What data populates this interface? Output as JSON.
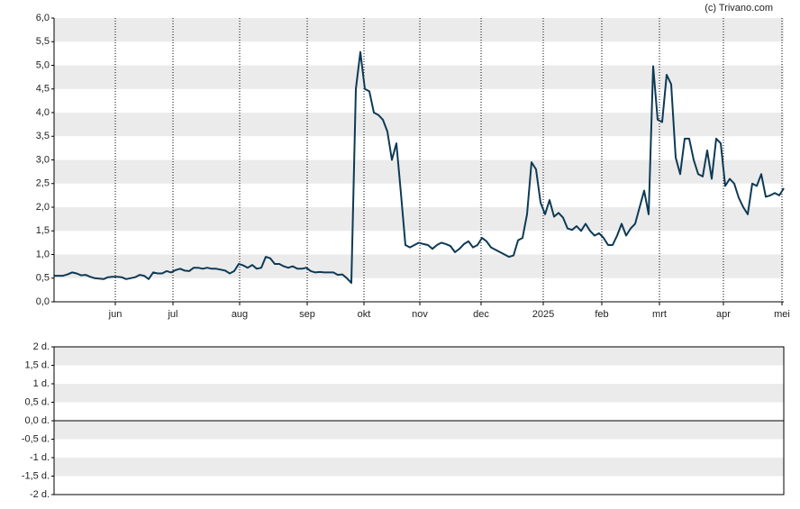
{
  "source": "(c) Trivano.com",
  "chart_data": [
    {
      "type": "line",
      "series": [
        {
          "color": "#0e3a55",
          "values": [
            0.55,
            0.55,
            0.55,
            0.58,
            0.62,
            0.6,
            0.56,
            0.57,
            0.53,
            0.5,
            0.49,
            0.48,
            0.52,
            0.53,
            0.53,
            0.52,
            0.48,
            0.5,
            0.52,
            0.57,
            0.55,
            0.48,
            0.62,
            0.6,
            0.6,
            0.65,
            0.62,
            0.67,
            0.7,
            0.66,
            0.65,
            0.72,
            0.72,
            0.7,
            0.72,
            0.7,
            0.7,
            0.68,
            0.66,
            0.6,
            0.65,
            0.8,
            0.77,
            0.72,
            0.78,
            0.7,
            0.72,
            0.95,
            0.92,
            0.8,
            0.8,
            0.75,
            0.72,
            0.75,
            0.7,
            0.7,
            0.72,
            0.65,
            0.62,
            0.63,
            0.62,
            0.62,
            0.62,
            0.57,
            0.58,
            0.5,
            0.4,
            4.5,
            5.28,
            4.5,
            4.45,
            4.0,
            3.95,
            3.85,
            3.6,
            3.0,
            3.35,
            2.3,
            1.2,
            1.15,
            1.2,
            1.25,
            1.22,
            1.2,
            1.12,
            1.2,
            1.25,
            1.22,
            1.18,
            1.05,
            1.12,
            1.22,
            1.28,
            1.15,
            1.2,
            1.35,
            1.28,
            1.15,
            1.1,
            1.05,
            1.0,
            0.95,
            0.98,
            1.3,
            1.35,
            1.85,
            2.95,
            2.8,
            2.1,
            1.85,
            2.15,
            1.8,
            1.88,
            1.78,
            1.55,
            1.52,
            1.6,
            1.5,
            1.65,
            1.5,
            1.4,
            1.45,
            1.35,
            1.2,
            1.2,
            1.4,
            1.65,
            1.4,
            1.55,
            1.65,
            2.0,
            2.35,
            1.85,
            4.98,
            3.85,
            3.8,
            4.8,
            4.6,
            3.05,
            2.7,
            3.45,
            3.45,
            3.0,
            2.7,
            2.65,
            3.2,
            2.6,
            3.45,
            3.35,
            2.45,
            2.6,
            2.5,
            2.2,
            2.0,
            1.85,
            2.5,
            2.45,
            2.7,
            2.22,
            2.25,
            2.3,
            2.25,
            2.4
          ]
        }
      ],
      "xlim": [
        0,
        162
      ],
      "xticks": [
        {
          "value": 13.6,
          "label": "jun"
        },
        {
          "value": 26.4,
          "label": "jul"
        },
        {
          "value": 41.2,
          "label": "aug"
        },
        {
          "value": 56.2,
          "label": "sep"
        },
        {
          "value": 68.8,
          "label": "okt"
        },
        {
          "value": 81.2,
          "label": "nov"
        },
        {
          "value": 94.8,
          "label": "dec"
        },
        {
          "value": 108.6,
          "label": "2025"
        },
        {
          "value": 121.6,
          "label": "feb"
        },
        {
          "value": 134.4,
          "label": "mrt"
        },
        {
          "value": 148.6,
          "label": "apr"
        },
        {
          "value": 161.6,
          "label": "mei"
        }
      ],
      "ylim": [
        0,
        6
      ],
      "yticks": [
        {
          "value": 0,
          "label": "0,0"
        },
        {
          "value": 0.5,
          "label": "0,5"
        },
        {
          "value": 1,
          "label": "1,0"
        },
        {
          "value": 1.5,
          "label": "1,5"
        },
        {
          "value": 2,
          "label": "2,0"
        },
        {
          "value": 2.5,
          "label": "2,5"
        },
        {
          "value": 3,
          "label": "3,0"
        },
        {
          "value": 3.5,
          "label": "3,5"
        },
        {
          "value": 4,
          "label": "4,0"
        },
        {
          "value": 4.5,
          "label": "4,5"
        },
        {
          "value": 5,
          "label": "5,0"
        },
        {
          "value": 5.5,
          "label": "5,5"
        },
        {
          "value": 6,
          "label": "6,0"
        }
      ],
      "grid": true
    },
    {
      "type": "line",
      "ylim": [
        -2,
        2
      ],
      "yticks": [
        {
          "value": -2,
          "label": "-2 d."
        },
        {
          "value": -1.5,
          "label": "-1,5 d."
        },
        {
          "value": -1,
          "label": "-1 d."
        },
        {
          "value": -0.5,
          "label": "-0,5 d."
        },
        {
          "value": 0,
          "label": "0,0 d."
        },
        {
          "value": 0.5,
          "label": "0,5 d."
        },
        {
          "value": 1,
          "label": "1 d."
        },
        {
          "value": 1.5,
          "label": "1,5 d."
        },
        {
          "value": 2,
          "label": "2 d."
        }
      ],
      "grid": true
    }
  ]
}
